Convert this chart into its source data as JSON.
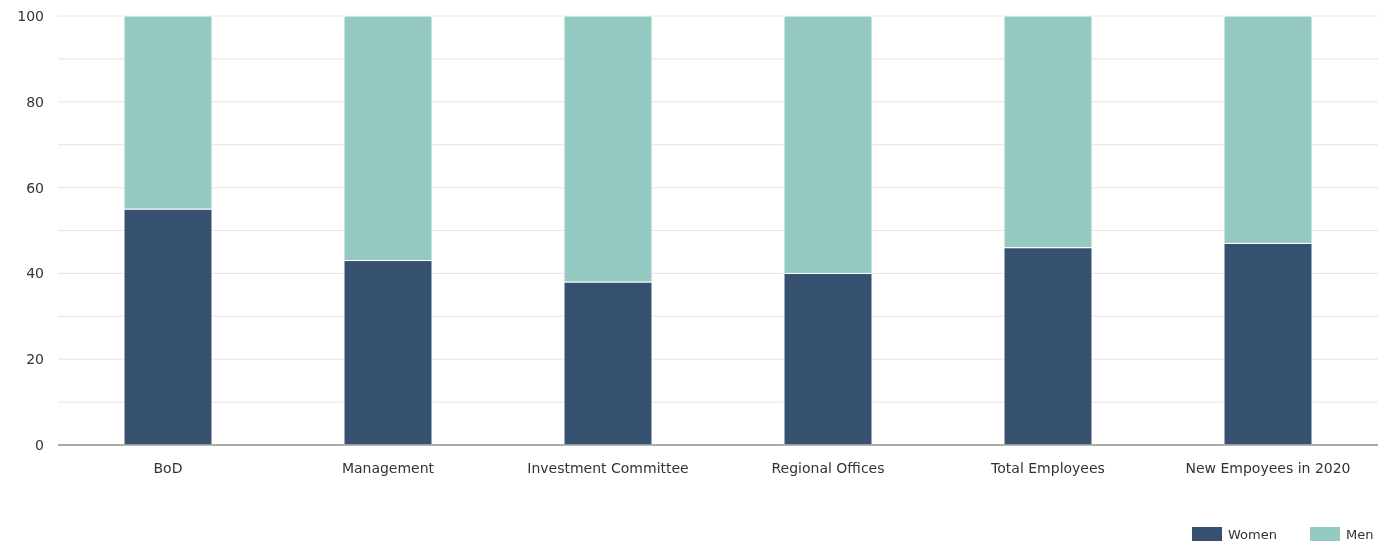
{
  "chart_data": {
    "type": "bar",
    "stacked": true,
    "categories": [
      "BoD",
      "Management",
      "Investment Committee",
      "Regional Offices",
      "Total Employees",
      "New Empoyees in 2020"
    ],
    "series": [
      {
        "name": "Women",
        "color": "#36506f",
        "values": [
          55,
          43,
          38,
          40,
          46,
          47
        ]
      },
      {
        "name": "Men",
        "color": "#95cac3",
        "values": [
          45,
          57,
          62,
          60,
          54,
          53
        ]
      }
    ],
    "ylim": [
      0,
      100
    ],
    "yticks": [
      0,
      {
        "value": 10,
        "label": null
      },
      20,
      {
        "value": 30,
        "label": null
      },
      40,
      {
        "value": 50,
        "label": null
      },
      60,
      {
        "value": 70,
        "label": null
      },
      80,
      {
        "value": 90,
        "label": null
      },
      100
    ],
    "grid": "y",
    "legend": "bottom right"
  }
}
